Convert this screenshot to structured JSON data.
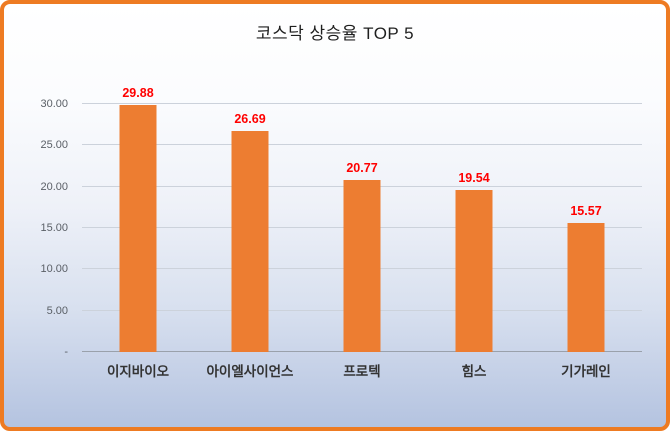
{
  "chart_data": {
    "type": "bar",
    "title": "코스닥 상승율 TOP 5",
    "categories": [
      "이지바이오",
      "아이엘사이언스",
      "프로텍",
      "힘스",
      "기가레인"
    ],
    "values": [
      29.88,
      26.69,
      20.77,
      19.54,
      15.57
    ],
    "value_labels": [
      "29.88",
      "26.69",
      "20.77",
      "19.54",
      "15.57"
    ],
    "xlabel": "",
    "ylabel": "",
    "ylim": [
      0,
      30
    ],
    "yticks": [
      0,
      5,
      10,
      15,
      20,
      25,
      30
    ],
    "ytick_labels": [
      "-",
      "5.00",
      "10.00",
      "15.00",
      "20.00",
      "25.00",
      "30.00"
    ],
    "grid": true,
    "legend": "none",
    "colors": {
      "bar": "#ed7d31",
      "data_label": "#ff0000",
      "border": "#ee7b22",
      "tick_label": "#5a5f66",
      "category_label": "#333333",
      "gridline": "#ccd2db",
      "axis_line": "#9aa1ab"
    }
  }
}
